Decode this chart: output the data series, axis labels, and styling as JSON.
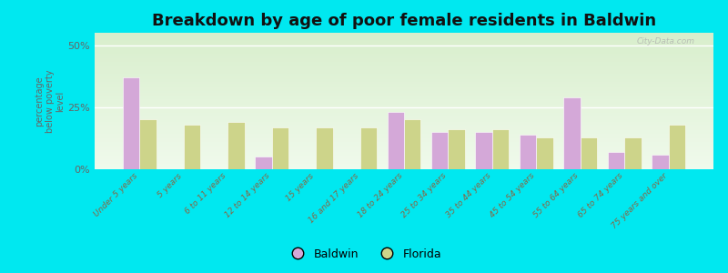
{
  "title": "Breakdown by age of poor female residents in Baldwin",
  "categories": [
    "Under 5 years",
    "5 years",
    "6 to 11 years",
    "12 to 14 years",
    "15 years",
    "16 and 17 years",
    "18 to 24 years",
    "25 to 34 years",
    "35 to 44 years",
    "45 to 54 years",
    "55 to 64 years",
    "65 to 74 years",
    "75 years and over"
  ],
  "baldwin_values": [
    37.0,
    null,
    null,
    5.0,
    null,
    null,
    23.0,
    15.0,
    15.0,
    14.0,
    29.0,
    7.0,
    6.0
  ],
  "florida_values": [
    20.0,
    18.0,
    19.0,
    17.0,
    17.0,
    17.0,
    20.0,
    16.0,
    16.0,
    13.0,
    13.0,
    13.0,
    18.0
  ],
  "baldwin_color": "#d4a8d8",
  "florida_color": "#cdd48a",
  "bg_outer": "#00e8f0",
  "bg_plot_top": "#d8eecc",
  "bg_plot_bottom": "#f0faec",
  "ylabel": "percentage\nbelow poverty\nlevel",
  "ylim": [
    0,
    55
  ],
  "yticks": [
    0,
    25,
    50
  ],
  "ytick_labels": [
    "0%",
    "25%",
    "50%"
  ],
  "title_fontsize": 13,
  "axis_label_color": "#886644",
  "legend_labels": [
    "Baldwin",
    "Florida"
  ],
  "watermark": "City-Data.com"
}
